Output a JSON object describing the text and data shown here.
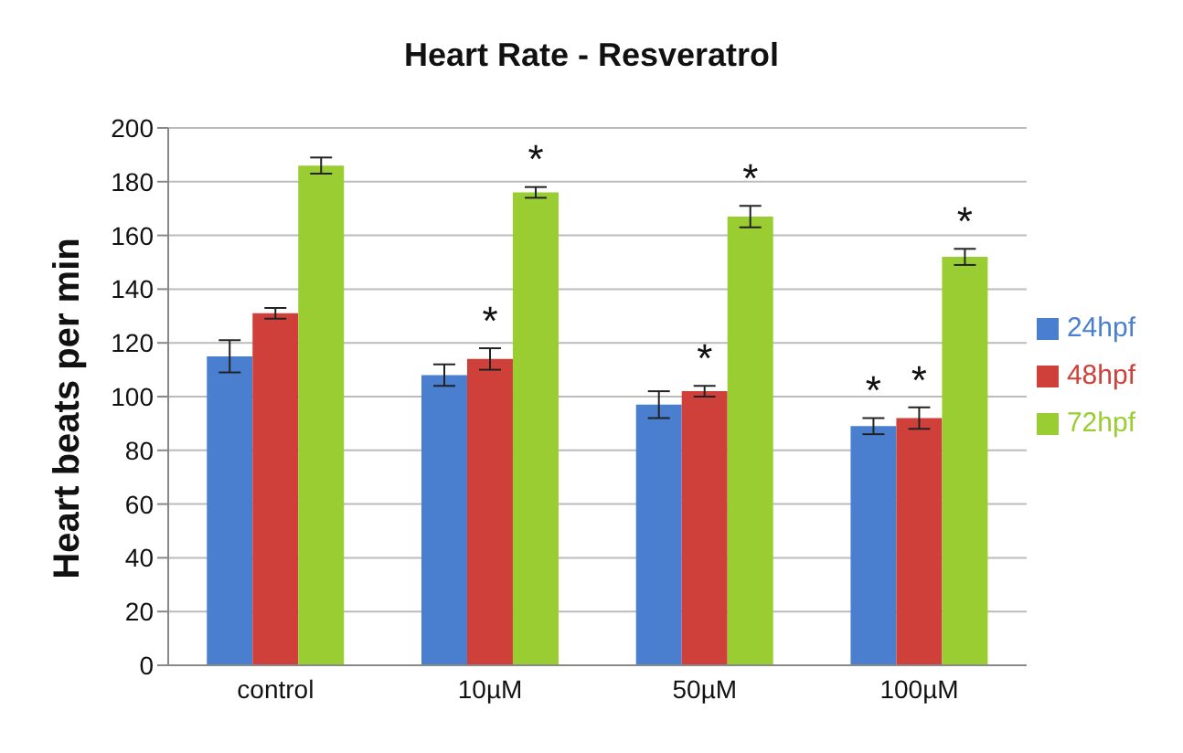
{
  "chart_data": {
    "type": "bar",
    "title": "Heart Rate - Resveratrol",
    "ylabel": "Heart beats per min",
    "categories": [
      "control",
      "10µM",
      "50µM",
      "100µM"
    ],
    "series": [
      {
        "name": "24hpf",
        "color": "#4a7fd0",
        "values": [
          115,
          108,
          97,
          89
        ],
        "errors": [
          6,
          4,
          5,
          3
        ],
        "value_labels": [
          null,
          null,
          null,
          "*"
        ]
      },
      {
        "name": "48hpf",
        "color": "#d0403a",
        "values": [
          131,
          114,
          102,
          92
        ],
        "errors": [
          2,
          4,
          2,
          4
        ],
        "value_labels": [
          null,
          "*",
          "*",
          "*"
        ]
      },
      {
        "name": "72hpf",
        "color": "#9acd32",
        "values": [
          186,
          176,
          167,
          152
        ],
        "errors": [
          3,
          2,
          4,
          3
        ],
        "value_labels": [
          null,
          "*",
          "*",
          "*"
        ]
      }
    ],
    "ylim": [
      0,
      200
    ],
    "yticks": [
      0,
      20,
      40,
      60,
      80,
      100,
      120,
      140,
      160,
      180,
      200
    ],
    "grid": "y",
    "legend": "right"
  }
}
